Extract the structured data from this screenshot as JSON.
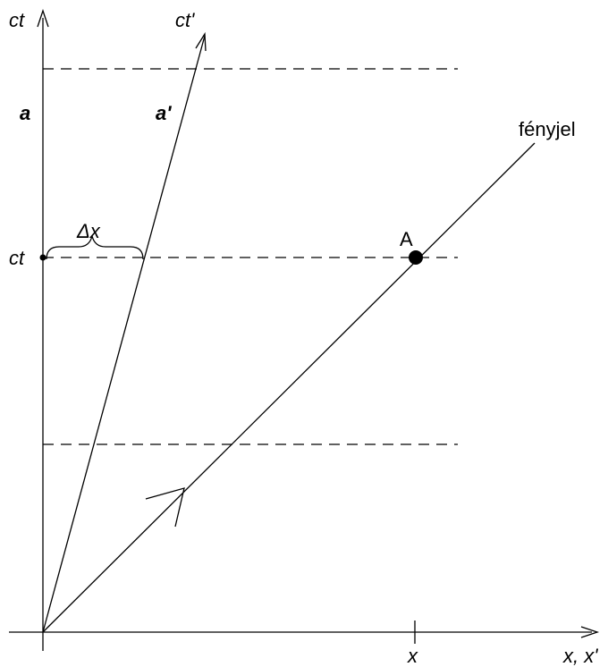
{
  "labels": {
    "ct_axis": "ct",
    "ct_prime_axis": "ct'",
    "x_axis": "x, x'",
    "a": "a",
    "a_prime": "a'",
    "ct_mark": "ct",
    "delta_x": "Δx",
    "event_A": "A",
    "light_signal": "fényjel",
    "x_mark": "x"
  }
}
